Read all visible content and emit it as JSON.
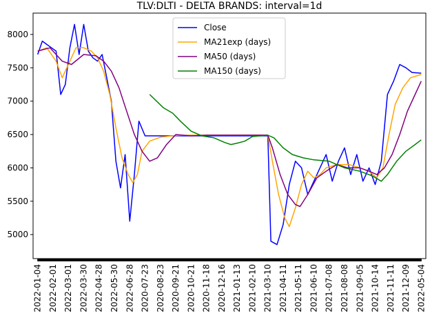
{
  "chart_data": {
    "type": "line",
    "title": "TLV:DLTI - DELTA BRANDS: interval=1d",
    "xlabel": "",
    "ylabel": "",
    "ylim": [
      4640,
      8320
    ],
    "yticks": [
      5000,
      5500,
      6000,
      6500,
      7000,
      7500,
      8000
    ],
    "x_tick_labels": [
      "2022-01-04",
      "2022-02-01",
      "2022-03-01",
      "2022-03-30",
      "2022-04-28",
      "2022-05-30",
      "2022-06-28",
      "2020-07-23",
      "2020-08-23",
      "2020-09-21",
      "2020-10-21",
      "2020-11-18",
      "2020-12-16",
      "2021-01-13",
      "2021-02-10",
      "2021-03-10",
      "2021-04-11",
      "2021-05-11",
      "2021-06-10",
      "2021-07-08",
      "2021-08-08",
      "2021-09-05",
      "2021-10-14",
      "2021-11-11",
      "2021-12-09",
      "2022-05-04"
    ],
    "x_range": [
      -0.3,
      25.3
    ],
    "legend_position": "upper-center",
    "grid": false,
    "series": [
      {
        "name": "Close",
        "color": "#0000ff",
        "points": [
          [
            0,
            7700
          ],
          [
            0.3,
            7900
          ],
          [
            0.6,
            7850
          ],
          [
            0.9,
            7800
          ],
          [
            1.2,
            7750
          ],
          [
            1.5,
            7100
          ],
          [
            1.8,
            7250
          ],
          [
            2.1,
            7800
          ],
          [
            2.4,
            8150
          ],
          [
            2.7,
            7700
          ],
          [
            3.0,
            8150
          ],
          [
            3.3,
            7750
          ],
          [
            3.6,
            7650
          ],
          [
            3.9,
            7600
          ],
          [
            4.2,
            7700
          ],
          [
            4.5,
            7350
          ],
          [
            4.8,
            7000
          ],
          [
            5.1,
            6100
          ],
          [
            5.4,
            5700
          ],
          [
            5.7,
            6200
          ],
          [
            6.0,
            5200
          ],
          [
            6.3,
            5900
          ],
          [
            6.6,
            6700
          ],
          [
            7.0,
            6480
          ],
          [
            8.5,
            6480
          ],
          [
            10,
            6480
          ],
          [
            12,
            6480
          ],
          [
            14,
            6480
          ],
          [
            15.0,
            6480
          ],
          [
            15.2,
            4900
          ],
          [
            15.6,
            4850
          ],
          [
            16.0,
            5150
          ],
          [
            16.4,
            5750
          ],
          [
            16.8,
            6100
          ],
          [
            17.2,
            6000
          ],
          [
            17.6,
            5600
          ],
          [
            18.0,
            5800
          ],
          [
            18.4,
            6000
          ],
          [
            18.8,
            6200
          ],
          [
            19.2,
            5800
          ],
          [
            19.6,
            6100
          ],
          [
            20.0,
            6300
          ],
          [
            20.4,
            5900
          ],
          [
            20.8,
            6200
          ],
          [
            21.2,
            5800
          ],
          [
            21.6,
            6000
          ],
          [
            22.0,
            5750
          ],
          [
            22.4,
            6100
          ],
          [
            22.8,
            7100
          ],
          [
            23.2,
            7300
          ],
          [
            23.6,
            7550
          ],
          [
            24.0,
            7500
          ],
          [
            24.4,
            7430
          ],
          [
            25.0,
            7420
          ]
        ]
      },
      {
        "name": "MA21exp (days)",
        "color": "#ffa500",
        "points": [
          [
            0,
            7750
          ],
          [
            0.6,
            7800
          ],
          [
            1.2,
            7600
          ],
          [
            1.6,
            7350
          ],
          [
            2.0,
            7550
          ],
          [
            2.5,
            7800
          ],
          [
            3.0,
            7800
          ],
          [
            3.5,
            7750
          ],
          [
            3.9,
            7650
          ],
          [
            4.3,
            7450
          ],
          [
            4.7,
            7100
          ],
          [
            5.1,
            6600
          ],
          [
            5.5,
            6150
          ],
          [
            5.9,
            5900
          ],
          [
            6.2,
            5780
          ],
          [
            6.5,
            5900
          ],
          [
            6.8,
            6250
          ],
          [
            7.3,
            6400
          ],
          [
            8.0,
            6460
          ],
          [
            9,
            6485
          ],
          [
            10,
            6490
          ],
          [
            15.0,
            6490
          ],
          [
            15.3,
            6100
          ],
          [
            15.7,
            5600
          ],
          [
            16.1,
            5250
          ],
          [
            16.4,
            5120
          ],
          [
            16.8,
            5400
          ],
          [
            17.2,
            5750
          ],
          [
            17.6,
            5950
          ],
          [
            18.0,
            5850
          ],
          [
            18.4,
            5900
          ],
          [
            18.8,
            6000
          ],
          [
            19.5,
            6050
          ],
          [
            20.3,
            6050
          ],
          [
            21.0,
            6000
          ],
          [
            21.6,
            5950
          ],
          [
            22.1,
            5850
          ],
          [
            22.5,
            6000
          ],
          [
            22.9,
            6500
          ],
          [
            23.3,
            6950
          ],
          [
            23.8,
            7200
          ],
          [
            24.3,
            7350
          ],
          [
            25.0,
            7400
          ]
        ]
      },
      {
        "name": "MA50 (days)",
        "color": "#800080",
        "points": [
          [
            0,
            7750
          ],
          [
            0.8,
            7800
          ],
          [
            1.6,
            7600
          ],
          [
            2.2,
            7550
          ],
          [
            3.0,
            7700
          ],
          [
            3.8,
            7680
          ],
          [
            4.3,
            7600
          ],
          [
            4.8,
            7450
          ],
          [
            5.3,
            7200
          ],
          [
            5.8,
            6850
          ],
          [
            6.3,
            6500
          ],
          [
            6.8,
            6250
          ],
          [
            7.3,
            6100
          ],
          [
            7.8,
            6150
          ],
          [
            8.4,
            6350
          ],
          [
            9.0,
            6500
          ],
          [
            10,
            6480
          ],
          [
            11,
            6490
          ],
          [
            12,
            6490
          ],
          [
            13,
            6490
          ],
          [
            15.0,
            6490
          ],
          [
            15.3,
            6300
          ],
          [
            15.8,
            5900
          ],
          [
            16.3,
            5600
          ],
          [
            16.8,
            5450
          ],
          [
            17.1,
            5420
          ],
          [
            17.6,
            5600
          ],
          [
            18.2,
            5850
          ],
          [
            18.8,
            5950
          ],
          [
            19.5,
            6050
          ],
          [
            20.2,
            6000
          ],
          [
            21.0,
            6000
          ],
          [
            21.6,
            5950
          ],
          [
            22.1,
            5900
          ],
          [
            22.6,
            6000
          ],
          [
            23.1,
            6200
          ],
          [
            23.6,
            6500
          ],
          [
            24.1,
            6850
          ],
          [
            24.6,
            7100
          ],
          [
            25.0,
            7300
          ]
        ]
      },
      {
        "name": "MA150 (days)",
        "color": "#008000",
        "points": [
          [
            7.3,
            7100
          ],
          [
            8.2,
            6900
          ],
          [
            8.8,
            6820
          ],
          [
            9.3,
            6700
          ],
          [
            10.0,
            6550
          ],
          [
            10.7,
            6480
          ],
          [
            11.5,
            6450
          ],
          [
            12.2,
            6380
          ],
          [
            12.6,
            6350
          ],
          [
            13.0,
            6370
          ],
          [
            13.5,
            6400
          ],
          [
            14.0,
            6470
          ],
          [
            15.0,
            6490
          ],
          [
            15.4,
            6450
          ],
          [
            16.0,
            6300
          ],
          [
            16.6,
            6200
          ],
          [
            17.3,
            6150
          ],
          [
            18.0,
            6120
          ],
          [
            19.0,
            6100
          ],
          [
            20.0,
            6000
          ],
          [
            21.0,
            5950
          ],
          [
            21.8,
            5880
          ],
          [
            22.4,
            5800
          ],
          [
            22.8,
            5900
          ],
          [
            23.4,
            6100
          ],
          [
            24.0,
            6250
          ],
          [
            24.6,
            6350
          ],
          [
            25.0,
            6420
          ]
        ]
      }
    ]
  }
}
